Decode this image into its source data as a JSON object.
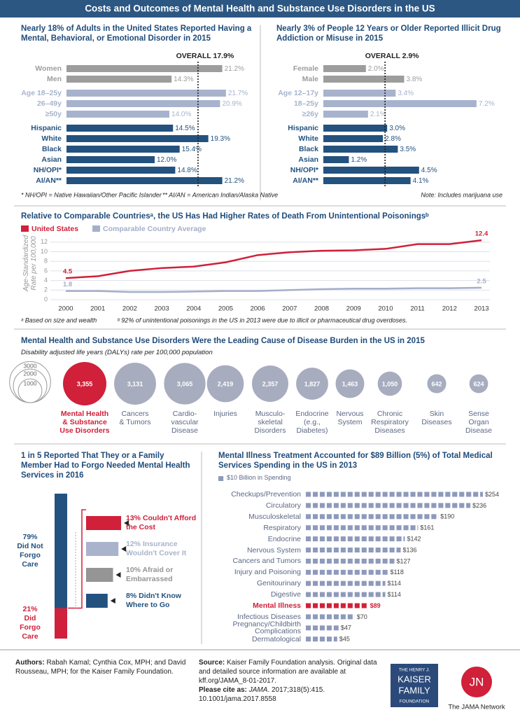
{
  "title": "Costs and Outcomes of Mental Health and Substance Use Disorders in the US",
  "chart_data": [
    {
      "type": "bar",
      "horizontal": true,
      "title": "Nearly 18% of Adults in the United States Reported Having a Mental, Behavioral, or Emotional Disorder in 2015",
      "categories": [
        "Women",
        "Men",
        "Age 18–25y",
        "26–49y",
        "≥50y",
        "Hispanic",
        "White",
        "Black",
        "Asian",
        "NH/OPI*",
        "AI/AN**"
      ],
      "values": [
        21.2,
        14.3,
        21.7,
        20.9,
        14.0,
        14.5,
        19.3,
        15.4,
        12.0,
        14.8,
        21.2
      ],
      "value_labels": [
        "21.2%",
        "14.3%",
        "21.7%",
        "20.9%",
        "14.0%",
        "14.5%",
        "19.3%",
        "15.4%",
        "12.0%",
        "14.8%",
        "21.2%"
      ],
      "colors": [
        "#9d9d9d",
        "#9d9d9d",
        "#a7b3cd",
        "#a7b3cd",
        "#a7b3cd",
        "#23527f",
        "#23527f",
        "#23527f",
        "#23527f",
        "#23527f",
        "#23527f"
      ],
      "xlim": [
        0,
        23
      ],
      "reference": {
        "value": 17.9,
        "label": "OVERALL 17.9%"
      },
      "notes": [
        "* NH/OPI = Native Hawaiian/Other Pacific Islander",
        "** AI/AN = American Indian/Alaska Native"
      ]
    },
    {
      "type": "bar",
      "horizontal": true,
      "title": "Nearly 3% of People 12 Years or Older Reported Illicit Drug Addiction or Misuse in 2015",
      "categories": [
        "Female",
        "Male",
        "Age 12–17y",
        "18–25y",
        "≥26y",
        "Hispanic",
        "White",
        "Black",
        "Asian",
        "NH/OPI*",
        "AI/AN**"
      ],
      "values": [
        2.0,
        3.8,
        3.4,
        7.2,
        2.1,
        3.0,
        2.8,
        3.5,
        1.2,
        4.5,
        4.1
      ],
      "value_labels": [
        "2.0%",
        "3.8%",
        "3.4%",
        "7.2%",
        "2.1%",
        "3.0%",
        "2.8%",
        "3.5%",
        "1.2%",
        "4.5%",
        "4.1%"
      ],
      "colors": [
        "#9d9d9d",
        "#9d9d9d",
        "#a7b3cd",
        "#a7b3cd",
        "#a7b3cd",
        "#23527f",
        "#23527f",
        "#23527f",
        "#23527f",
        "#23527f",
        "#23527f"
      ],
      "xlim": [
        0,
        7.5
      ],
      "reference": {
        "value": 2.9,
        "label": "OVERALL 2.9%"
      },
      "notes": [
        "Note: Includes marijuana use"
      ]
    },
    {
      "type": "line",
      "title": "Relative to Comparable Countriesᵃ, the US Has Had Higher Rates of Death From Unintentional Poisoningsᵇ",
      "y_label": "Age-Standardized Rate per 100,000",
      "x": [
        2000,
        2001,
        2002,
        2003,
        2004,
        2005,
        2006,
        2007,
        2008,
        2009,
        2010,
        2011,
        2012,
        2013
      ],
      "xlim": [
        2000,
        2013
      ],
      "xticks": [
        2000,
        2001,
        2002,
        2003,
        2004,
        2005,
        2006,
        2007,
        2008,
        2009,
        2010,
        2011,
        2012,
        2013
      ],
      "ylim": [
        0,
        13
      ],
      "yticks": [
        0,
        2,
        4,
        6,
        8,
        10,
        12
      ],
      "grid": true,
      "series": [
        {
          "name": "United States",
          "color": "#d0203a",
          "values": [
            4.5,
            4.9,
            6.0,
            6.6,
            6.9,
            7.8,
            9.3,
            9.9,
            10.2,
            10.3,
            10.6,
            11.6,
            11.6,
            12.4
          ]
        },
        {
          "name": "Comparable Country Average",
          "color": "#a5aeca",
          "values": [
            1.8,
            1.8,
            1.6,
            1.6,
            1.7,
            1.8,
            1.8,
            2.0,
            2.2,
            2.3,
            2.3,
            2.4,
            2.4,
            2.5
          ]
        }
      ],
      "notes": [
        "ᵃ Based on size and wealth",
        "ᵇ 92% of unintentional poisonings in the US in 2013 were due to illicit or pharmaceutical drug overdoses."
      ]
    },
    {
      "type": "bubble",
      "title": "Mental Health and Substance Use Disorders Were the Leading Cause of Disease Burden in the US in 2015",
      "subtitle": "Disability adjusted life years (DALYs) rate per 100,000 population",
      "categories": [
        "Mental Health\n& Substance\nUse Disorders",
        "Cancers\n& Tumors",
        "Cardio-\nvascular\nDisease",
        "Injuries",
        "Musculo-\nskeletal\nDisorders",
        "Endocrine\n(e.g.,\nDiabetes)",
        "Nervous\nSystem",
        "Chronic\nRespiratory\nDiseases",
        "Skin\nDiseases",
        "Sense\nOrgan\nDisease"
      ],
      "values": [
        3355,
        3131,
        3065,
        2419,
        2357,
        1827,
        1463,
        1050,
        642,
        624
      ],
      "value_labels": [
        "3,355",
        "3,131",
        "3,065",
        "2,419",
        "2,357",
        "1,827",
        "1,463",
        "1,050",
        "642",
        "624"
      ],
      "colors": [
        "#d0203a",
        "#a7acbf",
        "#a7acbf",
        "#a7acbf",
        "#a7acbf",
        "#a7acbf",
        "#a7acbf",
        "#a7acbf",
        "#a7acbf",
        "#a7acbf"
      ],
      "size_legend": [
        3000,
        2000,
        1000
      ]
    },
    {
      "type": "stacked_bar",
      "title": "1 in 5 Reported That They or a Family Member Had to Forgo Needed Mental Health Services in 2016",
      "categories": [
        "Did Not\nForgo\nCare",
        "Did\nForgo\nCare"
      ],
      "values": [
        79,
        21
      ],
      "value_labels": [
        "79%",
        "21%"
      ],
      "colors": [
        "#23527f",
        "#d0203a"
      ],
      "reasons": {
        "categories": [
          "Couldn't Afford the Cost",
          "Insurance Wouldn't Cover It",
          "Afraid or Embarrassed",
          "Didn't Know Where to Go"
        ],
        "values": [
          13,
          12,
          10,
          8
        ],
        "value_labels": [
          "13%",
          "12%",
          "10%",
          "8%"
        ],
        "colors": [
          "#d0203a",
          "#a9b3cb",
          "#959595",
          "#23527f"
        ]
      }
    },
    {
      "type": "pictogram_bar",
      "title": "Mental Illness Treatment Accounted for $89 Billion (5%) of Total Medical Services Spending in the US in 2013",
      "legend": {
        "label": "$10 Billion in Spending",
        "value": 10
      },
      "categories": [
        "Checkups/Prevention",
        "Circulatory",
        "Musculoskeletal",
        "Respiratory",
        "Endocrine",
        "Nervous System",
        "Cancers and Tumors",
        "Injury and Poisoning",
        "Genitourinary",
        "Digestive",
        "Mental Illness",
        "Infectious Diseases",
        "Pregnancy/Childbirth\nComplications",
        "Dermatological"
      ],
      "values": [
        254,
        236,
        190,
        161,
        142,
        136,
        127,
        118,
        114,
        114,
        89,
        70,
        47,
        45
      ],
      "value_labels": [
        "$254",
        "$236",
        "$190",
        "$161",
        "$142",
        "$136",
        "$127",
        "$118",
        "$114",
        "$114",
        "$89",
        "$70",
        "$47",
        "$45"
      ],
      "colors": [
        "#8e9abb",
        "#8e9abb",
        "#8e9abb",
        "#8e9abb",
        "#8e9abb",
        "#8e9abb",
        "#8e9abb",
        "#8e9abb",
        "#8e9abb",
        "#8e9abb",
        "#d0203a",
        "#8e9abb",
        "#8e9abb",
        "#8e9abb"
      ],
      "xlim": [
        0,
        260
      ]
    }
  ],
  "footer": {
    "authors_label": "Authors:",
    "authors": "Rabah Kamal; Cynthia Cox, MPH; and David Rousseau, MPH; for the Kaiser Family Foundation.",
    "source_label": "Source:",
    "source": "Kaiser Family Foundation analysis. Original data and detailed source information are available at kff.org/JAMA_8-01-2017.",
    "cite_label": "Please cite as:",
    "cite_journal": "JAMA",
    "cite": ". 2017;318(5):415. 10.1001/jama.2017.8558",
    "kff_logo": [
      "THE HENRY J.",
      "KAISER",
      "FAMILY",
      "FOUNDATION"
    ],
    "jn_logo": "JN",
    "jama_network": "The JAMA Network"
  }
}
